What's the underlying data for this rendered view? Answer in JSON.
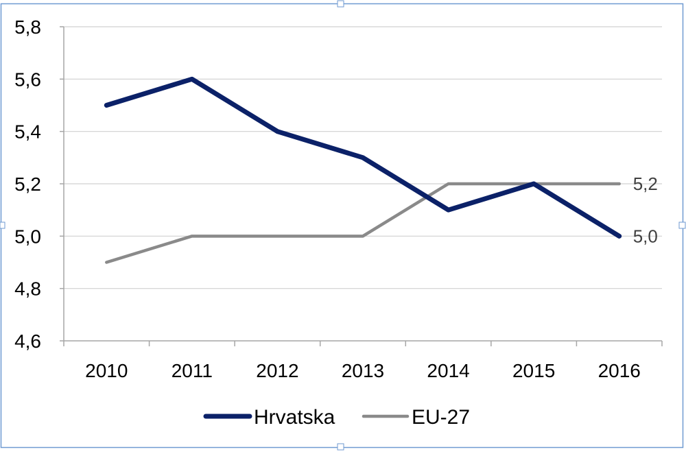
{
  "chart_data": {
    "type": "line",
    "x": [
      "2010",
      "2011",
      "2012",
      "2013",
      "2014",
      "2015",
      "2016"
    ],
    "y_ticks": [
      "4,6",
      "4,8",
      "5,0",
      "5,2",
      "5,4",
      "5,6",
      "5,8"
    ],
    "ylim": [
      4.6,
      5.8
    ],
    "grid": true,
    "legend_position": "bottom",
    "series": [
      {
        "name": "Hrvatska",
        "color": "#0b2168",
        "values": [
          5.5,
          5.6,
          5.4,
          5.3,
          5.1,
          5.2,
          5.0
        ],
        "end_label": "5,0"
      },
      {
        "name": "EU-27",
        "color": "#8a8a8a",
        "values": [
          4.9,
          5.0,
          5.0,
          5.0,
          5.2,
          5.2,
          5.2
        ],
        "end_label": "5,2"
      }
    ]
  }
}
